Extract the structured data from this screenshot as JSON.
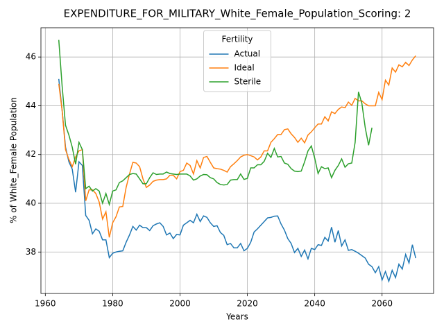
{
  "chart_data": {
    "type": "line",
    "title": "EXPENDITURE_FOR_MILITARY_White_Female_Population_Scoring: 2",
    "xlabel": "Years",
    "ylabel": "% of White_Female Population",
    "legend_title": "Fertility",
    "legend": "upper center",
    "grid": true,
    "xlim": [
      1958.7,
      2075.3
    ],
    "xticks": [
      1960,
      1980,
      2000,
      2020,
      2040,
      2060
    ],
    "ylim": [
      36.3,
      47.2
    ],
    "yticks": [
      38,
      40,
      42,
      44,
      46
    ],
    "x": [
      1964,
      1965,
      1966,
      1967,
      1968,
      1969,
      1970,
      1971,
      1972,
      1973,
      1974,
      1975,
      1976,
      1977,
      1978,
      1979,
      1980,
      1981,
      1982,
      1983,
      1984,
      1985,
      1986,
      1987,
      1988,
      1989,
      1990,
      1991,
      1992,
      1993,
      1994,
      1995,
      1996,
      1997,
      1998,
      1999,
      2000,
      2001,
      2002,
      2003,
      2004,
      2005,
      2006,
      2007,
      2008,
      2009,
      2010,
      2011,
      2012,
      2013,
      2014,
      2015,
      2016,
      2017,
      2018,
      2019,
      2020,
      2021,
      2022,
      2023,
      2024,
      2025,
      2026,
      2027,
      2028,
      2029,
      2030,
      2031,
      2032,
      2033,
      2034,
      2035,
      2036,
      2037,
      2038,
      2039,
      2040,
      2041,
      2042,
      2043,
      2044,
      2045,
      2046,
      2047,
      2048,
      2049,
      2050,
      2051,
      2052,
      2053,
      2054,
      2055,
      2056,
      2057,
      2058,
      2059,
      2060,
      2061,
      2062,
      2063,
      2064,
      2065,
      2066,
      2067,
      2068,
      2069,
      2070
    ],
    "series": [
      {
        "name": "Actual",
        "color": "#1f77b4",
        "values": [
          45.1,
          43.8,
          42.3,
          41.7,
          41.4,
          40.45,
          41.7,
          41.55,
          39.5,
          39.3,
          38.75,
          38.95,
          38.85,
          38.5,
          38.5,
          37.77,
          37.95,
          38.0,
          38.03,
          38.05,
          38.4,
          38.7,
          39.05,
          38.9,
          39.1,
          39.0,
          39.0,
          38.88,
          39.08,
          39.15,
          39.2,
          39.05,
          38.7,
          38.78,
          38.55,
          38.72,
          38.7,
          39.1,
          39.2,
          39.3,
          39.2,
          39.55,
          39.25,
          39.48,
          39.42,
          39.2,
          39.05,
          39.08,
          38.8,
          38.68,
          38.3,
          38.35,
          38.17,
          38.17,
          38.35,
          38.05,
          38.15,
          38.4,
          38.82,
          38.95,
          39.1,
          39.25,
          39.4,
          39.42,
          39.47,
          39.48,
          39.15,
          38.9,
          38.55,
          38.35,
          37.98,
          38.15,
          37.82,
          38.08,
          37.72,
          38.15,
          38.1,
          38.3,
          38.27,
          38.6,
          38.45,
          39.02,
          38.4,
          38.88,
          38.25,
          38.5,
          38.07,
          38.1,
          38.03,
          37.95,
          37.85,
          37.75,
          37.5,
          37.4,
          37.15,
          37.4,
          36.85,
          37.2,
          36.8,
          37.25,
          36.95,
          37.5,
          37.3,
          37.9,
          37.55,
          38.3,
          37.75
        ]
      },
      {
        "name": "Ideal",
        "color": "#ff7f0e",
        "values": [
          44.9,
          43.8,
          42.2,
          41.8,
          41.5,
          41.9,
          42.15,
          42.2,
          40.1,
          40.55,
          40.55,
          40.4,
          40.05,
          39.35,
          39.65,
          38.6,
          39.2,
          39.45,
          39.85,
          39.87,
          40.65,
          41.2,
          41.68,
          41.65,
          41.5,
          41.0,
          40.65,
          40.75,
          40.9,
          40.95,
          40.97,
          40.97,
          41.0,
          41.15,
          41.15,
          41.0,
          41.3,
          41.35,
          41.65,
          41.55,
          41.2,
          41.75,
          41.45,
          41.88,
          41.92,
          41.68,
          41.45,
          41.42,
          41.4,
          41.35,
          41.28,
          41.5,
          41.62,
          41.75,
          41.9,
          41.97,
          42.0,
          41.95,
          41.9,
          41.78,
          41.9,
          42.15,
          42.15,
          42.5,
          42.65,
          42.82,
          42.82,
          43.02,
          43.05,
          42.85,
          42.7,
          42.5,
          42.67,
          42.48,
          42.8,
          42.93,
          43.1,
          43.25,
          43.25,
          43.55,
          43.38,
          43.75,
          43.68,
          43.85,
          43.95,
          43.92,
          44.15,
          44.02,
          44.3,
          44.2,
          44.2,
          44.08,
          44.0,
          44.0,
          44.0,
          44.55,
          44.25,
          45.05,
          44.85,
          45.55,
          45.38,
          45.68,
          45.6,
          45.78,
          45.65,
          45.88,
          46.05
        ]
      },
      {
        "name": "Sterile",
        "color": "#2ca02c",
        "values": [
          46.7,
          44.8,
          43.2,
          42.8,
          42.3,
          41.6,
          42.5,
          42.2,
          40.6,
          40.7,
          40.5,
          40.6,
          40.5,
          40.0,
          40.4,
          39.95,
          40.5,
          40.55,
          40.85,
          40.92,
          41.05,
          41.18,
          41.22,
          41.2,
          41.0,
          40.8,
          40.8,
          41.05,
          41.25,
          41.18,
          41.2,
          41.2,
          41.28,
          41.22,
          41.2,
          41.18,
          41.2,
          41.2,
          41.2,
          41.12,
          40.95,
          41.0,
          41.12,
          41.18,
          41.17,
          41.05,
          41.0,
          40.85,
          40.77,
          40.75,
          40.77,
          40.95,
          40.97,
          40.97,
          41.2,
          40.98,
          41.02,
          41.45,
          41.45,
          41.58,
          41.58,
          41.72,
          42.05,
          41.88,
          42.25,
          41.9,
          41.92,
          41.65,
          41.6,
          41.42,
          41.32,
          41.3,
          41.32,
          41.7,
          42.15,
          42.35,
          41.85,
          41.22,
          41.5,
          41.42,
          41.45,
          41.05,
          41.35,
          41.55,
          41.82,
          41.48,
          41.62,
          41.65,
          42.5,
          44.57,
          44.1,
          43.1,
          42.38,
          43.1,
          null,
          null,
          null,
          null,
          null,
          null,
          null,
          null,
          null,
          null,
          null,
          null,
          null
        ]
      }
    ]
  }
}
